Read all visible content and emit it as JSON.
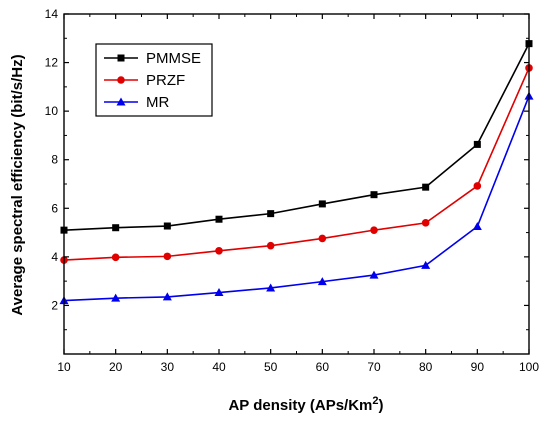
{
  "chart_data": {
    "type": "line",
    "x": [
      10,
      20,
      30,
      40,
      50,
      60,
      70,
      80,
      90,
      100
    ],
    "xlabel": "AP density (APs/Km",
    "xlabel_sup": "2",
    "xlabel_end": ")",
    "ylabel": "Average spectral efficiency (bit/s/Hz)",
    "xlim": [
      10,
      100
    ],
    "ylim": [
      0,
      14
    ],
    "xticks": [
      "10",
      "20",
      "30",
      "40",
      "50",
      "60",
      "70",
      "80",
      "90",
      "100"
    ],
    "yticks": [
      "2",
      "4",
      "6",
      "8",
      "10",
      "12",
      "14"
    ],
    "grid": false,
    "legend_position": "top-left",
    "series": [
      {
        "name": "PMMSE",
        "color": "#000000",
        "marker": "square",
        "values": [
          5.1,
          5.2,
          5.27,
          5.55,
          5.78,
          6.18,
          6.56,
          6.87,
          8.63,
          12.78
        ]
      },
      {
        "name": "PRZF",
        "color": "#e00000",
        "marker": "circle",
        "values": [
          3.87,
          3.98,
          4.02,
          4.25,
          4.46,
          4.76,
          5.1,
          5.4,
          6.92,
          11.78
        ]
      },
      {
        "name": "MR",
        "color": "#0000ee",
        "marker": "triangle",
        "values": [
          2.2,
          2.3,
          2.35,
          2.53,
          2.72,
          2.98,
          3.25,
          3.65,
          5.25,
          10.62
        ]
      }
    ]
  }
}
